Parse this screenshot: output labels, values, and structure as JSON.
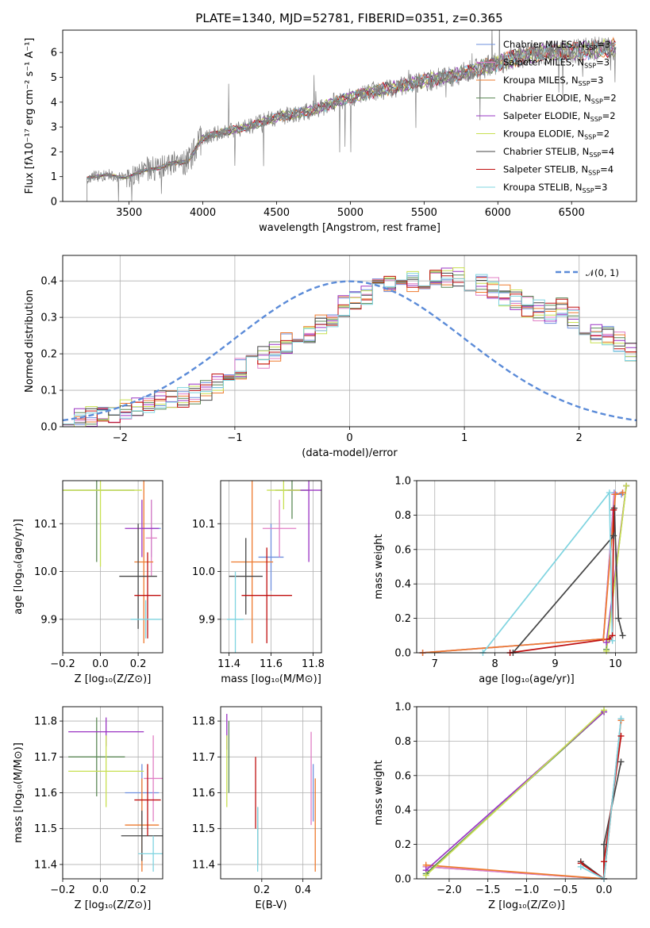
{
  "figure": {
    "title": "PLATE=1340, MJD=52781, FIBERID=0351, z=0.365"
  },
  "colors": {
    "Chabrier MILES": "#6e8fde",
    "Salpeter MILES": "#e07fc5",
    "Kroupa MILES": "#ee7a2e",
    "Chabrier ELODIE": "#5d8a57",
    "Salpeter ELODIE": "#9a35c3",
    "Kroupa ELODIE": "#c8e051",
    "Chabrier STELIB": "#454545",
    "Salpeter STELIB": "#c01010",
    "Kroupa STELIB": "#7fd4e0",
    "grid": "#b0b0b0"
  },
  "legend_spectrum": [
    {
      "model": "Chabrier MILES",
      "label": "Chabrier MILES, N",
      "sub": "SSP",
      "n": "=3"
    },
    {
      "model": "Salpeter MILES",
      "label": "Salpeter MILES, N",
      "sub": "SSP",
      "n": "=3"
    },
    {
      "model": "Kroupa MILES",
      "label": "Kroupa MILES, N",
      "sub": "SSP",
      "n": "=3"
    },
    {
      "model": "Chabrier ELODIE",
      "label": "Chabrier ELODIE, N",
      "sub": "SSP",
      "n": "=2"
    },
    {
      "model": "Salpeter ELODIE",
      "label": "Salpeter ELODIE, N",
      "sub": "SSP",
      "n": "=2"
    },
    {
      "model": "Kroupa ELODIE",
      "label": "Kroupa ELODIE, N",
      "sub": "SSP",
      "n": "=2"
    },
    {
      "model": "Chabrier STELIB",
      "label": "Chabrier STELIB, N",
      "sub": "SSP",
      "n": "=4"
    },
    {
      "model": "Salpeter STELIB",
      "label": "Salpeter STELIB, N",
      "sub": "SSP",
      "n": "=4"
    },
    {
      "model": "Kroupa STELIB",
      "label": "Kroupa STELIB, N",
      "sub": "SSP",
      "n": "=3"
    }
  ],
  "chart_data": [
    {
      "id": "spectrum",
      "type": "line",
      "xlabel": "wavelength [Angstrom, rest frame]",
      "ylabel": "Flux [fλ10⁻¹⁷ erg cm⁻² s⁻¹ A⁻¹]",
      "xlim": [
        3050,
        6940
      ],
      "ylim": [
        0,
        6.9
      ],
      "xticks": [
        3500,
        4000,
        4500,
        5000,
        5500,
        6000,
        6500
      ],
      "yticks": [
        0,
        1,
        2,
        3,
        4,
        5,
        6
      ],
      "grid": false,
      "legend_placement": "upper right",
      "data_line_color": "#808080",
      "continuum_knots": {
        "x": [
          3215,
          3350,
          3480,
          3600,
          3700,
          3800,
          3900,
          3990,
          4100,
          4300,
          4500,
          4700,
          4900,
          5100,
          5300,
          5500,
          5700,
          5900,
          6100,
          6300,
          6500,
          6700,
          6800
        ],
        "y": [
          0.95,
          1.08,
          0.95,
          1.25,
          1.35,
          1.55,
          1.6,
          2.5,
          2.75,
          3.0,
          3.4,
          3.6,
          4.0,
          4.35,
          4.6,
          4.85,
          5.05,
          5.4,
          5.75,
          6.0,
          6.05,
          6.15,
          6.2
        ]
      },
      "spectrum_xrange": [
        3215,
        6800
      ]
    },
    {
      "id": "residuals",
      "type": "histogram",
      "xlabel": "(data-model)/error",
      "ylabel": "Normed distribution",
      "xlim": [
        -2.5,
        2.5
      ],
      "ylim": [
        0,
        0.47
      ],
      "xticks": [
        -2,
        -1,
        0,
        1,
        2
      ],
      "yticks": [
        0.0,
        0.1,
        0.2,
        0.3,
        0.4
      ],
      "grid": true,
      "legend_placement": "upper right",
      "legend_label": "𝒩(0, 1)",
      "bin_width": 0.1,
      "bin_start": -2.5,
      "base_values": [
        0.02,
        0.02,
        0.03,
        0.03,
        0.04,
        0.05,
        0.05,
        0.06,
        0.07,
        0.07,
        0.08,
        0.09,
        0.1,
        0.12,
        0.14,
        0.16,
        0.18,
        0.19,
        0.21,
        0.23,
        0.25,
        0.26,
        0.28,
        0.3,
        0.33,
        0.35,
        0.36,
        0.38,
        0.39,
        0.39,
        0.4,
        0.4,
        0.41,
        0.41,
        0.41,
        0.4,
        0.39,
        0.38,
        0.36,
        0.35,
        0.33,
        0.32,
        0.31,
        0.33,
        0.3,
        0.28,
        0.26,
        0.25,
        0.23,
        0.21,
        0.19,
        0.17,
        0.17,
        0.15,
        0.13,
        0.11,
        0.1,
        0.08,
        0.07,
        0.06,
        0.05,
        0.05,
        0.04,
        0.04,
        0.03,
        0.03,
        0.02,
        0.02,
        0.02,
        0.02,
        0.02,
        0.02,
        0.02,
        0.02,
        0.02,
        0.02,
        0.02,
        0.02,
        0.02,
        0.02
      ]
    },
    {
      "id": "z_vs_age",
      "type": "errorbar",
      "xlabel": "Z [log₁₀(Z/Z⊙)]",
      "ylabel": "age  [log₁₀(age/yr)]",
      "xlim": [
        -0.2,
        0.33
      ],
      "ylim": [
        9.83,
        10.19
      ],
      "xticks": [
        -0.2,
        0.0,
        0.2
      ],
      "yticks": [
        9.9,
        10.0,
        10.1
      ],
      "grid": true,
      "points": [
        {
          "model": "Chabrier MILES",
          "x": 0.27,
          "xerr": 0.05,
          "y": 10.09,
          "yerr": 0.06
        },
        {
          "model": "Salpeter MILES",
          "x": 0.27,
          "xerr": 0.03,
          "y": 10.07,
          "yerr": 0.08
        },
        {
          "model": "Kroupa MILES",
          "x": 0.23,
          "xerr": 0.05,
          "y": 10.02,
          "yerr": 0.17
        },
        {
          "model": "Chabrier ELODIE",
          "x": -0.02,
          "xerr": 0.2,
          "y": 10.17,
          "yerr": 0.15
        },
        {
          "model": "Salpeter ELODIE",
          "x": 0.22,
          "xerr": 0.09,
          "y": 10.09,
          "yerr": 0.06
        },
        {
          "model": "Kroupa ELODIE",
          "x": 0.0,
          "xerr": 0.22,
          "y": 10.17,
          "yerr": 0.16
        },
        {
          "model": "Chabrier STELIB",
          "x": 0.2,
          "xerr": 0.1,
          "y": 9.99,
          "yerr": 0.11
        },
        {
          "model": "Salpeter STELIB",
          "x": 0.25,
          "xerr": 0.07,
          "y": 9.95,
          "yerr": 0.09
        },
        {
          "model": "Kroupa STELIB",
          "x": 0.24,
          "xerr": 0.08,
          "y": 9.9,
          "yerr": 0.04
        }
      ]
    },
    {
      "id": "mass_vs_age",
      "type": "errorbar",
      "xlabel": "mass [log₁₀(M/M⊙)]",
      "ylabel": "",
      "xlim": [
        11.36,
        11.84
      ],
      "ylim": [
        9.83,
        10.19
      ],
      "xticks": [
        11.4,
        11.6,
        11.8
      ],
      "yticks": [
        9.9,
        10.0,
        10.1
      ],
      "grid": true,
      "points": [
        {
          "model": "Chabrier MILES",
          "x": 11.6,
          "xerr": 0.06,
          "y": 10.03,
          "yerr": 0.07
        },
        {
          "model": "Salpeter MILES",
          "x": 11.64,
          "xerr": 0.08,
          "y": 10.09,
          "yerr": 0.06
        },
        {
          "model": "Kroupa MILES",
          "x": 11.51,
          "xerr": 0.1,
          "y": 10.02,
          "yerr": 0.17
        },
        {
          "model": "Chabrier ELODIE",
          "x": 11.7,
          "xerr": 0.08,
          "y": 10.17,
          "yerr": 0.06
        },
        {
          "model": "Salpeter ELODIE",
          "x": 11.78,
          "xerr": 0.1,
          "y": 10.17,
          "yerr": 0.15
        },
        {
          "model": "Kroupa ELODIE",
          "x": 11.66,
          "xerr": 0.08,
          "y": 10.17,
          "yerr": 0.04
        },
        {
          "model": "Chabrier STELIB",
          "x": 11.48,
          "xerr": 0.08,
          "y": 9.99,
          "yerr": 0.08
        },
        {
          "model": "Salpeter STELIB",
          "x": 11.58,
          "xerr": 0.12,
          "y": 9.95,
          "yerr": 0.1
        },
        {
          "model": "Kroupa STELIB",
          "x": 11.43,
          "xerr": 0.04,
          "y": 9.9,
          "yerr": 0.1
        }
      ]
    },
    {
      "id": "age_vs_weight",
      "type": "line",
      "xlabel": "age  [log₁₀(age/yr)]",
      "ylabel": "mass weight",
      "xlim": [
        6.7,
        10.35
      ],
      "ylim": [
        0.0,
        1.0
      ],
      "xticks": [
        7,
        8,
        9,
        10
      ],
      "yticks": [
        0.0,
        0.2,
        0.4,
        0.6,
        0.8,
        1.0
      ],
      "grid": true,
      "series": [
        {
          "model": "Chabrier MILES",
          "x": [
            6.8,
            9.8,
            9.98,
            10.1
          ],
          "y": [
            0.0,
            0.08,
            0.93,
            0.92
          ]
        },
        {
          "model": "Salpeter MILES",
          "x": [
            6.8,
            9.8,
            9.98,
            10.12
          ],
          "y": [
            0.0,
            0.08,
            0.92,
            0.93
          ]
        },
        {
          "model": "Kroupa MILES",
          "x": [
            6.8,
            9.8,
            10.0,
            10.12
          ],
          "y": [
            0.0,
            0.08,
            0.92,
            0.93
          ]
        },
        {
          "model": "Chabrier ELODIE",
          "x": [
            9.85,
            10.18
          ],
          "y": [
            0.02,
            0.97
          ]
        },
        {
          "model": "Salpeter ELODIE",
          "x": [
            9.85,
            10.18
          ],
          "y": [
            0.06,
            0.97
          ]
        },
        {
          "model": "Kroupa ELODIE",
          "x": [
            9.85,
            10.18
          ],
          "y": [
            0.01,
            0.97
          ]
        },
        {
          "model": "Chabrier STELIB",
          "x": [
            8.3,
            9.97,
            9.98,
            10.05,
            10.12
          ],
          "y": [
            0.0,
            0.68,
            0.84,
            0.2,
            0.1
          ]
        },
        {
          "model": "Salpeter STELIB",
          "x": [
            8.25,
            9.9,
            9.95,
            9.97
          ],
          "y": [
            0.0,
            0.08,
            0.1,
            0.83
          ]
        },
        {
          "model": "Kroupa STELIB",
          "x": [
            7.8,
            9.9,
            9.95
          ],
          "y": [
            0.0,
            0.93,
            0.07
          ]
        }
      ]
    },
    {
      "id": "z_vs_mass",
      "type": "errorbar",
      "xlabel": "Z [log₁₀(Z/Z⊙)]",
      "ylabel": "mass [log₁₀(M/M⊙)]",
      "xlim": [
        -0.2,
        0.33
      ],
      "ylim": [
        11.36,
        11.84
      ],
      "xticks": [
        -0.2,
        0.0,
        0.2
      ],
      "yticks": [
        11.4,
        11.5,
        11.6,
        11.7,
        11.8
      ],
      "grid": true,
      "points": [
        {
          "model": "Chabrier MILES",
          "x": 0.22,
          "xerr": 0.09,
          "y": 11.6,
          "yerr": 0.08
        },
        {
          "model": "Salpeter MILES",
          "x": 0.28,
          "xerr": 0.05,
          "y": 11.64,
          "yerr": 0.12
        },
        {
          "model": "Kroupa MILES",
          "x": 0.22,
          "xerr": 0.09,
          "y": 11.51,
          "yerr": 0.13
        },
        {
          "model": "Chabrier ELODIE",
          "x": -0.02,
          "xerr": 0.15,
          "y": 11.7,
          "yerr": 0.11
        },
        {
          "model": "Salpeter ELODIE",
          "x": 0.03,
          "xerr": 0.2,
          "y": 11.77,
          "yerr": 0.04
        },
        {
          "model": "Kroupa ELODIE",
          "x": 0.03,
          "xerr": 0.2,
          "y": 11.66,
          "yerr": 0.1
        },
        {
          "model": "Chabrier STELIB",
          "x": 0.22,
          "xerr": 0.11,
          "y": 11.48,
          "yerr": 0.07
        },
        {
          "model": "Salpeter STELIB",
          "x": 0.25,
          "xerr": 0.07,
          "y": 11.58,
          "yerr": 0.1
        },
        {
          "model": "Kroupa STELIB",
          "x": 0.28,
          "xerr": 0.08,
          "y": 11.43,
          "yerr": 0.05
        }
      ]
    },
    {
      "id": "ebv_vs_mass",
      "type": "errorbar",
      "xlabel": "E(B-V)",
      "ylabel": "",
      "xlim": [
        0.0,
        0.49
      ],
      "ylim": [
        11.36,
        11.84
      ],
      "xticks": [
        0.2,
        0.4
      ],
      "yticks": [
        11.4,
        11.5,
        11.6,
        11.7,
        11.8
      ],
      "grid": true,
      "points": [
        {
          "model": "Chabrier MILES",
          "x": 0.45,
          "xerr": 0.0,
          "y": 11.6,
          "yerr": 0.08
        },
        {
          "model": "Salpeter MILES",
          "x": 0.44,
          "xerr": 0.0,
          "y": 11.64,
          "yerr": 0.13
        },
        {
          "model": "Kroupa MILES",
          "x": 0.46,
          "xerr": 0.0,
          "y": 11.51,
          "yerr": 0.13
        },
        {
          "model": "Chabrier ELODIE",
          "x": 0.04,
          "xerr": 0.0,
          "y": 11.7,
          "yerr": 0.1
        },
        {
          "model": "Salpeter ELODIE",
          "x": 0.03,
          "xerr": 0.0,
          "y": 11.77,
          "yerr": 0.05
        },
        {
          "model": "Kroupa ELODIE",
          "x": 0.03,
          "xerr": 0.0,
          "y": 11.66,
          "yerr": 0.1
        },
        {
          "model": "Chabrier STELIB",
          "x": 0.18,
          "xerr": 0.0,
          "y": 11.48,
          "yerr": 0.08
        },
        {
          "model": "Salpeter STELIB",
          "x": 0.17,
          "xerr": 0.0,
          "y": 11.6,
          "yerr": 0.1
        },
        {
          "model": "Kroupa STELIB",
          "x": 0.18,
          "xerr": 0.0,
          "y": 11.47,
          "yerr": 0.09
        }
      ]
    },
    {
      "id": "z_vs_weight",
      "type": "line",
      "xlabel": "Z [log₁₀(Z/Z⊙)]",
      "ylabel": "mass weight",
      "xlim": [
        -2.42,
        0.42
      ],
      "ylim": [
        0.0,
        1.0
      ],
      "xticks": [
        -2.0,
        -1.5,
        -1.0,
        -0.5,
        0.0
      ],
      "yticks": [
        0.0,
        0.2,
        0.4,
        0.6,
        0.8,
        1.0
      ],
      "grid": true,
      "series": [
        {
          "model": "Chabrier MILES",
          "x": [
            -2.3,
            0.0,
            0.22
          ],
          "y": [
            0.07,
            0.0,
            0.93
          ]
        },
        {
          "model": "Salpeter MILES",
          "x": [
            -2.3,
            0.0,
            0.22
          ],
          "y": [
            0.07,
            0.0,
            0.92
          ]
        },
        {
          "model": "Kroupa MILES",
          "x": [
            -2.3,
            0.0,
            0.22
          ],
          "y": [
            0.08,
            0.0,
            0.92
          ]
        },
        {
          "model": "Chabrier ELODIE",
          "x": [
            -2.3,
            0.0
          ],
          "y": [
            0.03,
            0.97
          ]
        },
        {
          "model": "Salpeter ELODIE",
          "x": [
            -2.3,
            0.0
          ],
          "y": [
            0.05,
            0.97
          ]
        },
        {
          "model": "Kroupa ELODIE",
          "x": [
            -2.3,
            0.0
          ],
          "y": [
            0.02,
            0.98
          ]
        },
        {
          "model": "Chabrier STELIB",
          "x": [
            -0.3,
            0.0,
            0.0,
            0.22
          ],
          "y": [
            0.1,
            0.0,
            0.2,
            0.68
          ]
        },
        {
          "model": "Salpeter STELIB",
          "x": [
            -0.3,
            0.0,
            0.0,
            0.22
          ],
          "y": [
            0.09,
            0.0,
            0.1,
            0.83
          ]
        },
        {
          "model": "Kroupa STELIB",
          "x": [
            -0.3,
            0.0,
            0.22
          ],
          "y": [
            0.07,
            0.0,
            0.93
          ]
        }
      ]
    }
  ]
}
